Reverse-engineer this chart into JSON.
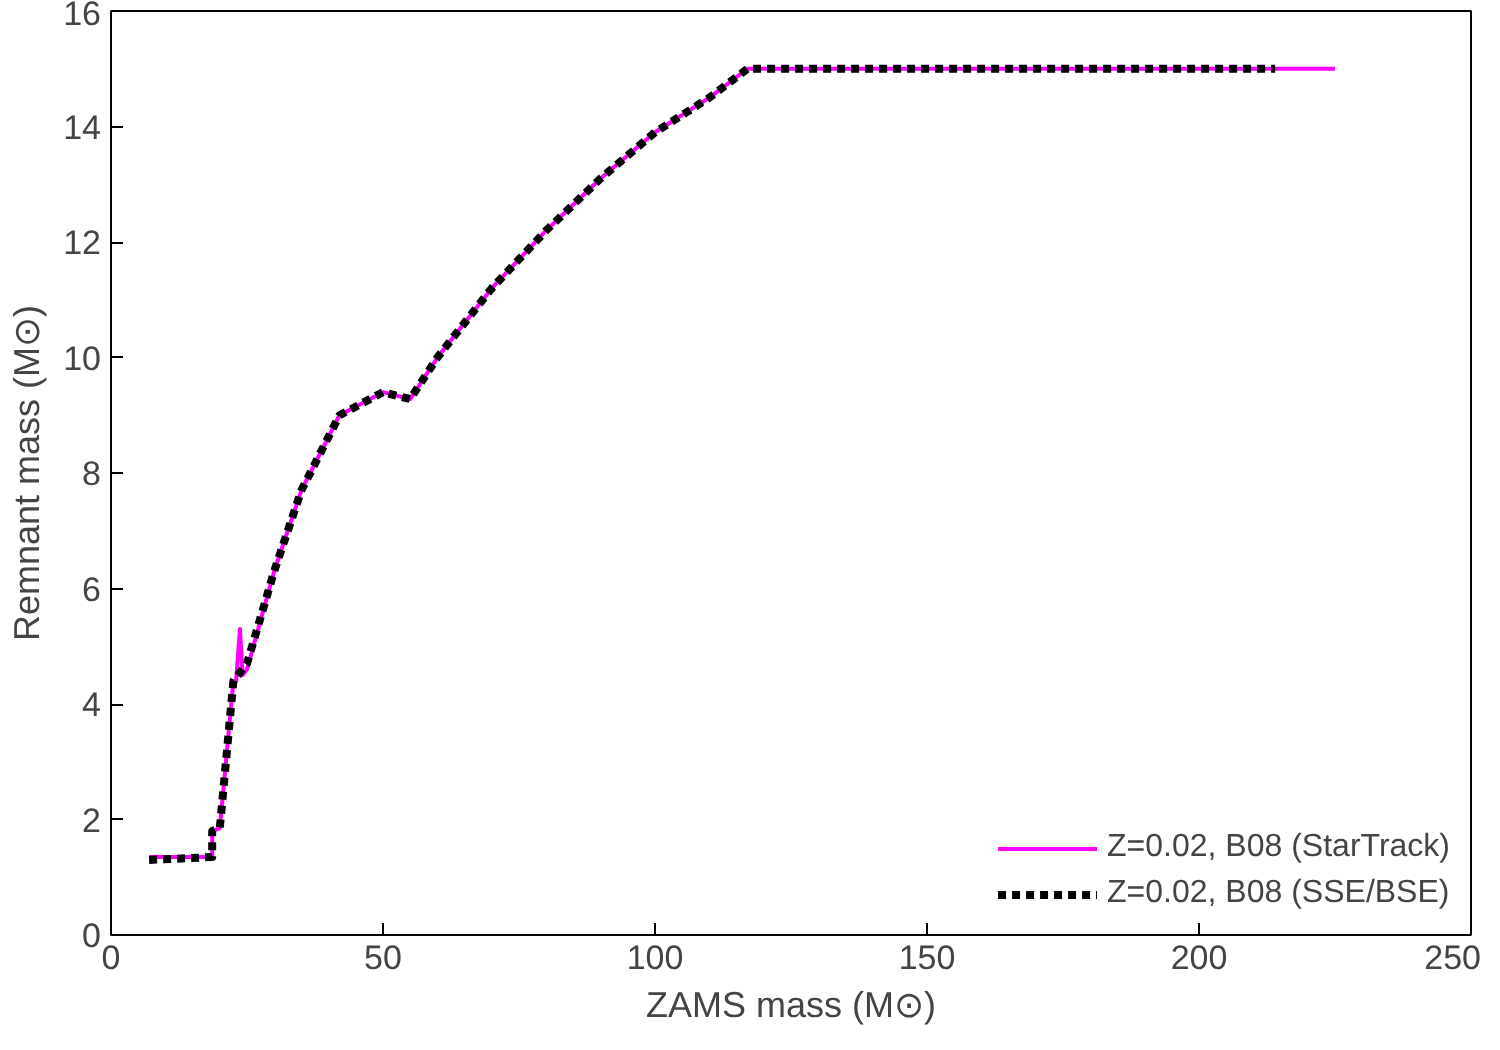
{
  "chart_data": {
    "type": "line",
    "xlabel": "ZAMS mass (M⊙)",
    "ylabel": "Remnant mass (M⊙)",
    "xlim": [
      0,
      250
    ],
    "ylim": [
      0,
      16
    ],
    "xticks": [
      0,
      50,
      100,
      150,
      200,
      250
    ],
    "yticks": [
      0,
      2,
      4,
      6,
      8,
      10,
      12,
      14,
      16
    ],
    "grid": false,
    "legend": "bottom right",
    "series": [
      {
        "name": "Z=0.02, B08 (StarTrack)",
        "color": "#ff00ff",
        "line_style": "solid",
        "x": [
          7,
          18.6,
          18.6,
          20,
          22.5,
          23,
          23.7,
          24.2,
          25,
          30,
          35,
          42,
          50,
          55,
          60,
          70,
          80,
          90,
          100,
          110,
          117,
          130,
          150,
          170,
          190,
          210,
          225
        ],
        "values": [
          1.35,
          1.35,
          1.8,
          1.85,
          4.4,
          4.4,
          5.3,
          4.5,
          4.6,
          6.3,
          7.7,
          9.0,
          9.4,
          9.28,
          10.0,
          11.2,
          12.2,
          13.1,
          13.9,
          14.5,
          15.0,
          15.0,
          15.0,
          15.0,
          15.0,
          15.0,
          15.0
        ]
      },
      {
        "name": "Z=0.02, B08 (SSE/BSE)",
        "color": "#000000",
        "line_style": "dashed",
        "x": [
          7,
          18.6,
          18.6,
          20,
          22.5,
          25,
          30,
          35,
          42,
          50,
          55,
          60,
          70,
          80,
          90,
          100,
          110,
          117,
          130,
          150,
          170,
          190,
          214
        ],
        "values": [
          1.3,
          1.35,
          1.8,
          1.85,
          4.4,
          4.7,
          6.3,
          7.7,
          9.0,
          9.4,
          9.28,
          10.0,
          11.2,
          12.2,
          13.1,
          13.9,
          14.5,
          15.0,
          15.0,
          15.0,
          15.0,
          15.0,
          15.0
        ]
      }
    ]
  }
}
